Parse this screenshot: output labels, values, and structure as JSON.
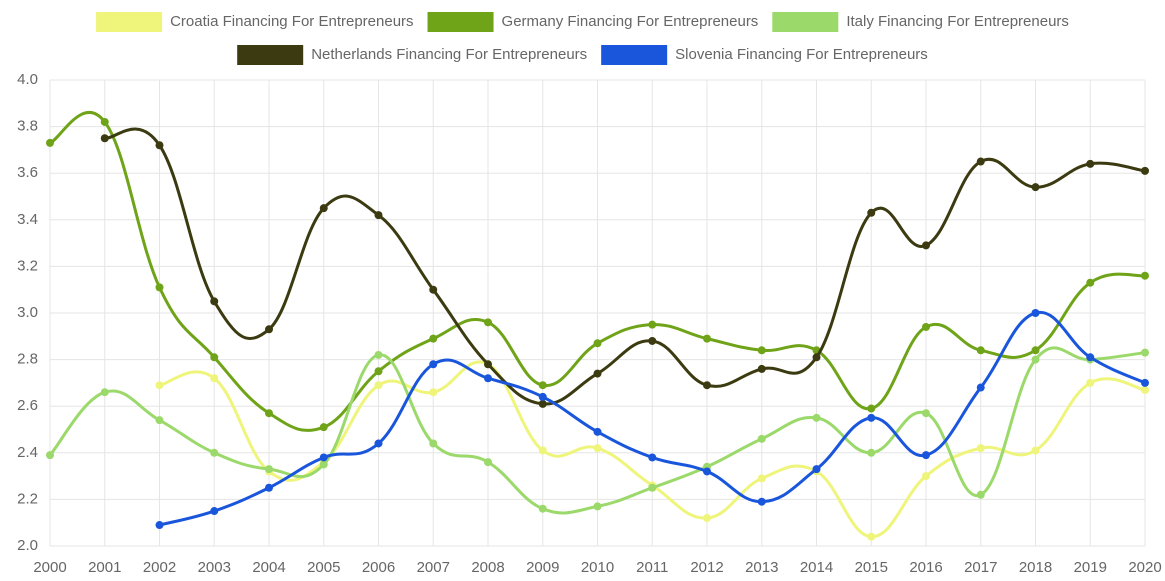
{
  "chart_data": {
    "type": "line",
    "categories": [
      "2000",
      "2001",
      "2002",
      "2003",
      "2004",
      "2005",
      "2006",
      "2007",
      "2008",
      "2009",
      "2010",
      "2011",
      "2012",
      "2013",
      "2014",
      "2015",
      "2016",
      "2017",
      "2018",
      "2019",
      "2020"
    ],
    "series": [
      {
        "name": "Croatia Financing For Entrepreneurs",
        "color": "#eef57a",
        "values": [
          null,
          null,
          2.69,
          2.72,
          2.32,
          2.36,
          2.69,
          2.66,
          2.78,
          2.41,
          2.42,
          2.26,
          2.12,
          2.29,
          2.32,
          2.04,
          2.3,
          2.42,
          2.41,
          2.7,
          2.67
        ]
      },
      {
        "name": "Germany Financing For Entrepreneurs",
        "color": "#6fa318",
        "values": [
          3.73,
          3.82,
          3.11,
          2.81,
          2.57,
          2.51,
          2.75,
          2.89,
          2.96,
          2.69,
          2.87,
          2.95,
          2.89,
          2.84,
          2.84,
          2.59,
          2.94,
          2.84,
          2.84,
          3.13,
          3.16
        ]
      },
      {
        "name": "Italy Financing For Entrepreneurs",
        "color": "#9bd96a",
        "values": [
          2.39,
          2.66,
          2.54,
          2.4,
          2.33,
          2.35,
          2.82,
          2.44,
          2.36,
          2.16,
          2.17,
          2.25,
          2.34,
          2.46,
          2.55,
          2.4,
          2.57,
          2.22,
          2.8,
          2.8,
          2.83
        ]
      },
      {
        "name": "Netherlands Financing For Entrepreneurs",
        "color": "#3b3a10",
        "values": [
          null,
          3.75,
          3.72,
          3.05,
          2.93,
          3.45,
          3.42,
          3.1,
          2.78,
          2.61,
          2.74,
          2.88,
          2.69,
          2.76,
          2.81,
          3.43,
          3.29,
          3.65,
          3.54,
          3.64,
          3.61
        ]
      },
      {
        "name": "Slovenia Financing For Entrepreneurs",
        "color": "#1a56db",
        "values": [
          null,
          null,
          2.09,
          2.15,
          2.25,
          2.38,
          2.44,
          2.78,
          2.72,
          2.64,
          2.49,
          2.38,
          2.32,
          2.19,
          2.33,
          2.55,
          2.39,
          2.68,
          3.0,
          2.81,
          2.7
        ]
      }
    ],
    "ylim": [
      2.0,
      4.0
    ],
    "yticks": [
      {
        "value": 2.0,
        "label": "2.0"
      },
      {
        "value": 2.2,
        "label": "2.2"
      },
      {
        "value": 2.4,
        "label": "2.4"
      },
      {
        "value": 2.6,
        "label": "2.6"
      },
      {
        "value": 2.8,
        "label": "2.8"
      },
      {
        "value": 3.0,
        "label": "3.0"
      },
      {
        "value": 3.2,
        "label": "3.2"
      },
      {
        "value": 3.4,
        "label": "3.4"
      },
      {
        "value": 3.6,
        "label": "3.6"
      },
      {
        "value": 3.8,
        "label": "3.8"
      },
      {
        "value": 4.0,
        "label": "4.0"
      }
    ],
    "grid": true,
    "legend": "top"
  }
}
